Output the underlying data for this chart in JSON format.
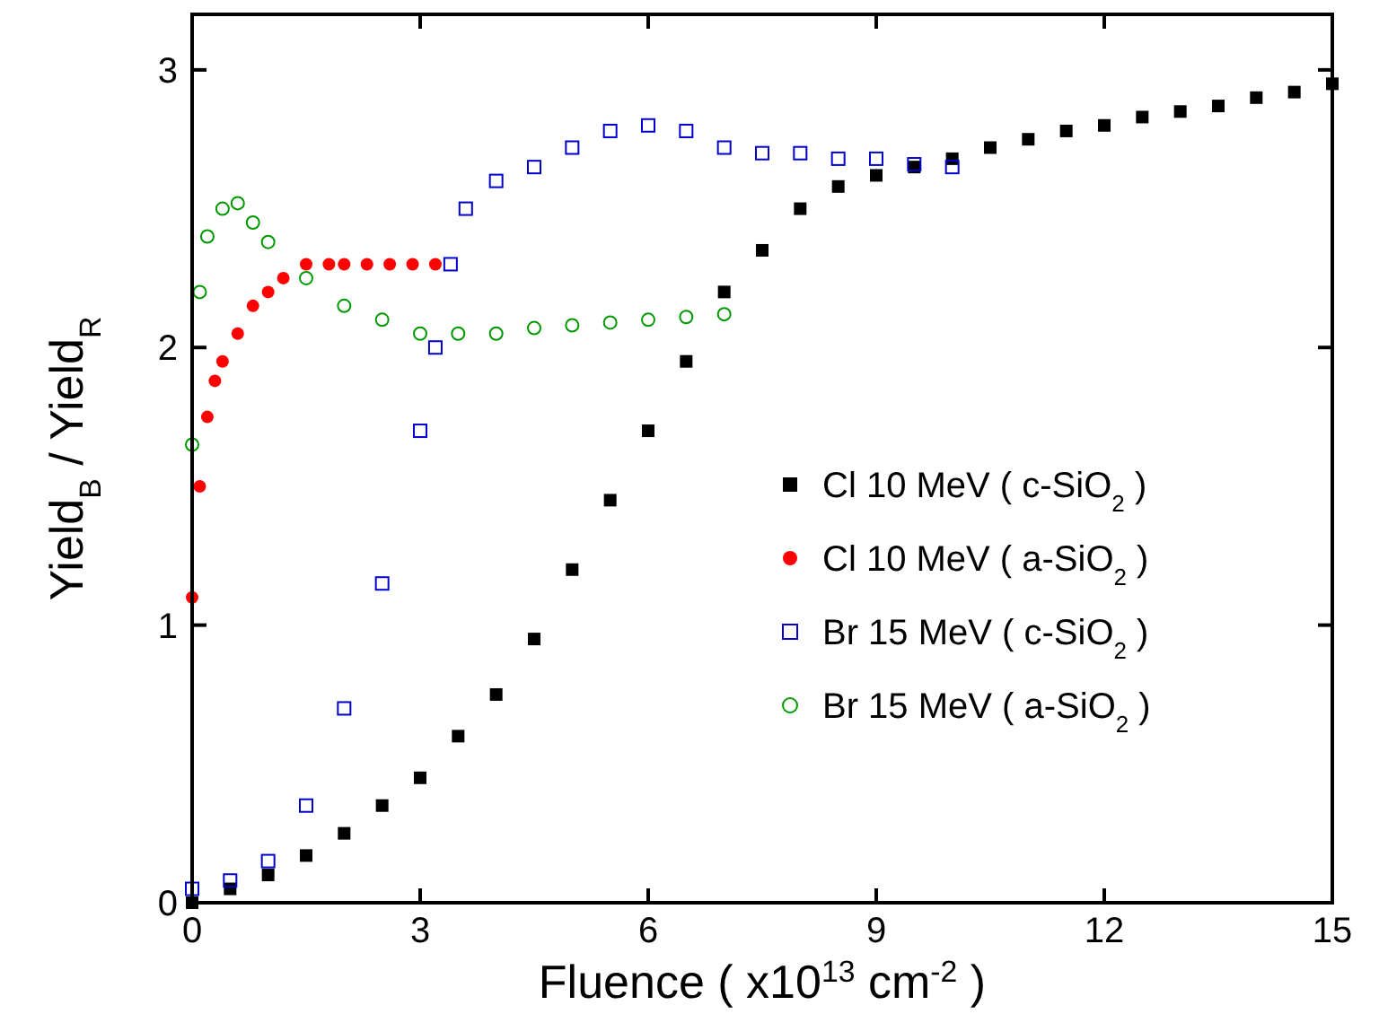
{
  "chart_data": {
    "type": "scatter",
    "xlabel": "Fluence ( x10$^{13}$ cm$^{-2}$ )",
    "ylabel": "Yield$_{B}$ / Yield$_{R}$",
    "xlim": [
      0,
      15
    ],
    "ylim": [
      0,
      3.2
    ],
    "xticks": [
      0,
      3,
      6,
      9,
      12,
      15
    ],
    "yticks": [
      0,
      1,
      2,
      3
    ],
    "legend": "bottom right",
    "grid": false,
    "series": [
      {
        "name": "Cl 10 MeV ( c-SiO$_{2}$ )",
        "color": "#000000",
        "marker": "square",
        "x": [
          0,
          0.5,
          1,
          1.5,
          2,
          2.5,
          3,
          3.5,
          4,
          4.5,
          5,
          5.5,
          6,
          6.5,
          7,
          7.5,
          8,
          8.5,
          9,
          9.5,
          10,
          10.5,
          11,
          11.5,
          12,
          12.5,
          13,
          13.5,
          14,
          14.5,
          15
        ],
        "values": [
          0,
          0.05,
          0.1,
          0.17,
          0.25,
          0.35,
          0.45,
          0.6,
          0.75,
          0.95,
          1.2,
          1.45,
          1.7,
          1.95,
          2.2,
          2.35,
          2.5,
          2.58,
          2.62,
          2.65,
          2.68,
          2.72,
          2.75,
          2.78,
          2.8,
          2.83,
          2.85,
          2.87,
          2.9,
          2.92,
          2.95
        ]
      },
      {
        "name": "Cl 10 MeV ( a-SiO$_{2}$ )",
        "color": "#ff0000",
        "marker": "circle",
        "x": [
          0,
          0.1,
          0.2,
          0.3,
          0.4,
          0.6,
          0.8,
          1,
          1.2,
          1.5,
          1.8,
          2,
          2.3,
          2.6,
          2.9,
          3.2
        ],
        "values": [
          1.1,
          1.5,
          1.75,
          1.88,
          1.95,
          2.05,
          2.15,
          2.2,
          2.25,
          2.3,
          2.3,
          2.3,
          2.3,
          2.3,
          2.3,
          2.3
        ]
      },
      {
        "name": "Br 15 MeV ( c-SiO$_{2}$ )",
        "color": "#0000cc",
        "marker": "square",
        "x": [
          0,
          0.5,
          1,
          1.5,
          2,
          2.5,
          3,
          3.2,
          3.4,
          3.6,
          4,
          4.5,
          5,
          5.5,
          6,
          6.5,
          7,
          7.5,
          8,
          8.5,
          9,
          9.5,
          10
        ],
        "values": [
          0.05,
          0.08,
          0.15,
          0.35,
          0.7,
          1.15,
          1.7,
          2,
          2.3,
          2.5,
          2.6,
          2.65,
          2.72,
          2.78,
          2.8,
          2.78,
          2.72,
          2.7,
          2.7,
          2.68,
          2.68,
          2.66,
          2.65
        ]
      },
      {
        "name": "Br 15 MeV ( a-SiO$_{2}$ )",
        "color": "#009900",
        "marker": "circle",
        "x": [
          0,
          0.1,
          0.2,
          0.4,
          0.6,
          0.8,
          1,
          1.5,
          2,
          2.5,
          3,
          3.5,
          4,
          4.5,
          5,
          5.5,
          6,
          6.5,
          7
        ],
        "values": [
          1.65,
          2.2,
          2.4,
          2.5,
          2.52,
          2.45,
          2.38,
          2.25,
          2.15,
          2.1,
          2.05,
          2.05,
          2.05,
          2.07,
          2.08,
          2.09,
          2.1,
          2.11,
          2.12
        ]
      }
    ]
  }
}
